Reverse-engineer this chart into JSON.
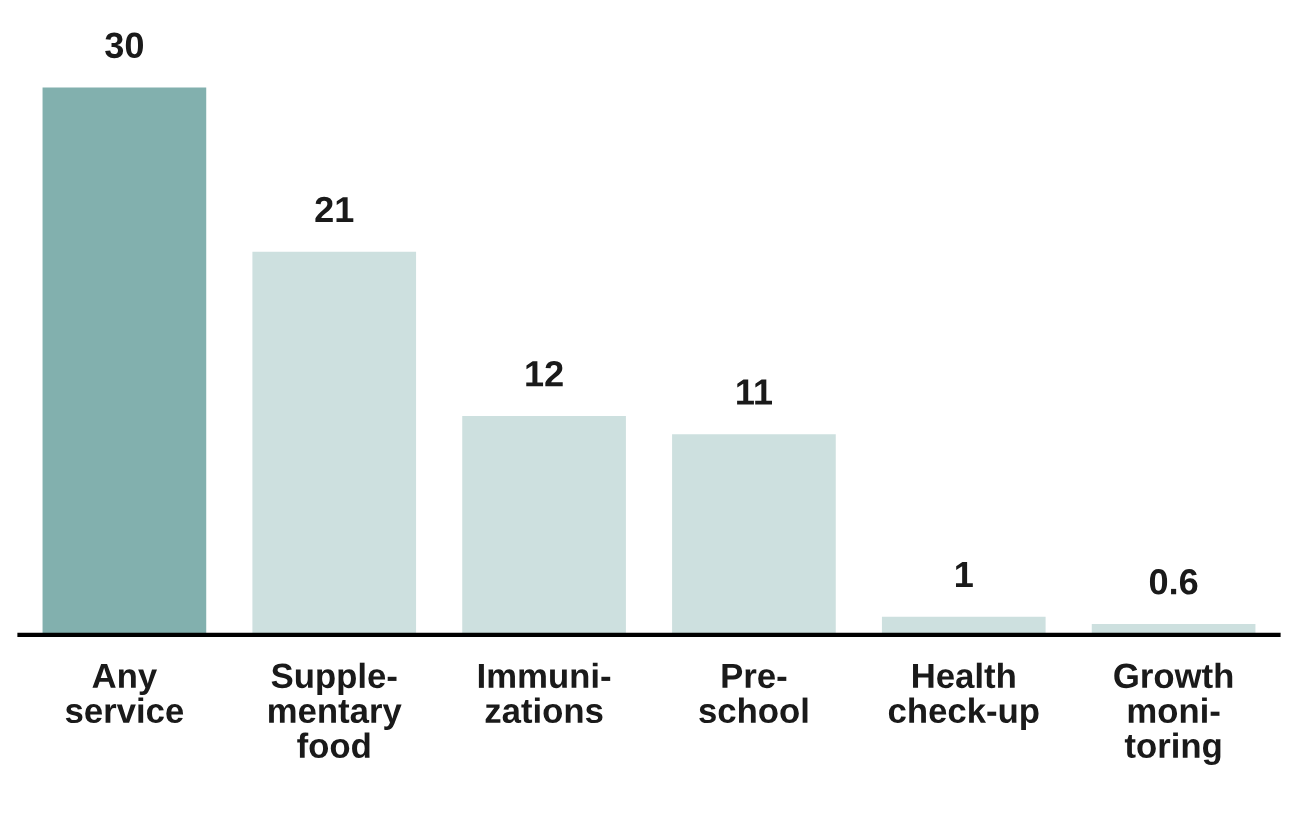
{
  "chart_data": {
    "type": "bar",
    "categories": [
      "Any\nservice",
      "Supple-\nmentary\nfood",
      "Immuni-\nzations",
      "Pre-\nschool",
      "Health\ncheck-up",
      "Growth\nmoni-\ntoring"
    ],
    "values": [
      30,
      21,
      12,
      11,
      1,
      0.6
    ],
    "colors": [
      "#82b0ae",
      "#cde0df",
      "#cde0df",
      "#cde0df",
      "#cde0df",
      "#cde0df"
    ],
    "data_labels": true,
    "grid": false,
    "legend": false
  }
}
